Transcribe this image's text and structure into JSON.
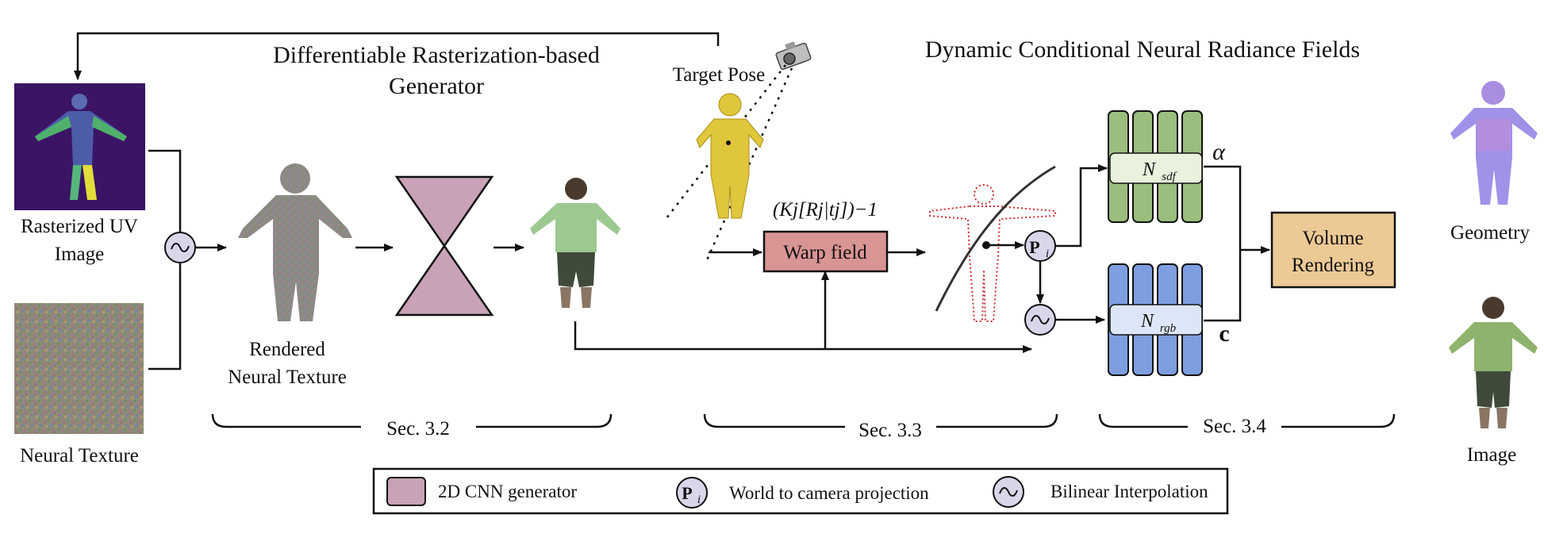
{
  "titles": {
    "generator": [
      "Differentiable Rasterization-based",
      "Generator"
    ],
    "nerf": "Dynamic Conditional Neural Radiance Fields"
  },
  "inputs": {
    "uv_image": [
      "Rasterized UV",
      "Image"
    ],
    "neural_texture": "Neural Texture"
  },
  "rendered": [
    "Rendered",
    "Neural Texture"
  ],
  "target_pose": "Target Pose",
  "warp": {
    "formula": "(Kj[Rj|tj])−1",
    "label": "Warp field"
  },
  "networks": {
    "sdf": {
      "letter": "N",
      "sub": "sdf",
      "output": "α"
    },
    "rgb": {
      "letter": "N",
      "sub": "rgb",
      "output": "c"
    }
  },
  "projection_node": {
    "letter": "P",
    "sub": "i"
  },
  "volume": [
    "Volume",
    "Rendering"
  ],
  "outputs": {
    "geometry": "Geometry",
    "image": "Image"
  },
  "sections": [
    "Sec. 3.2",
    "Sec. 3.3",
    "Sec. 3.4"
  ],
  "legend": {
    "cnn": "2D CNN generator",
    "projection": "World to camera projection",
    "interp": "Bilinear Interpolation"
  },
  "colors": {
    "cnn": "#c9a2b7",
    "warp": "#d99494",
    "sdf": "#9bbd7d",
    "sdf_inner": "#e8f2dc",
    "rgb": "#7e9ee0",
    "rgb_inner": "#dde6f6",
    "volume": "#ecc995",
    "node": "#dad6ea",
    "uv_bg": "#3b1465"
  },
  "icons": [
    "tilde-icon",
    "camera-icon"
  ]
}
